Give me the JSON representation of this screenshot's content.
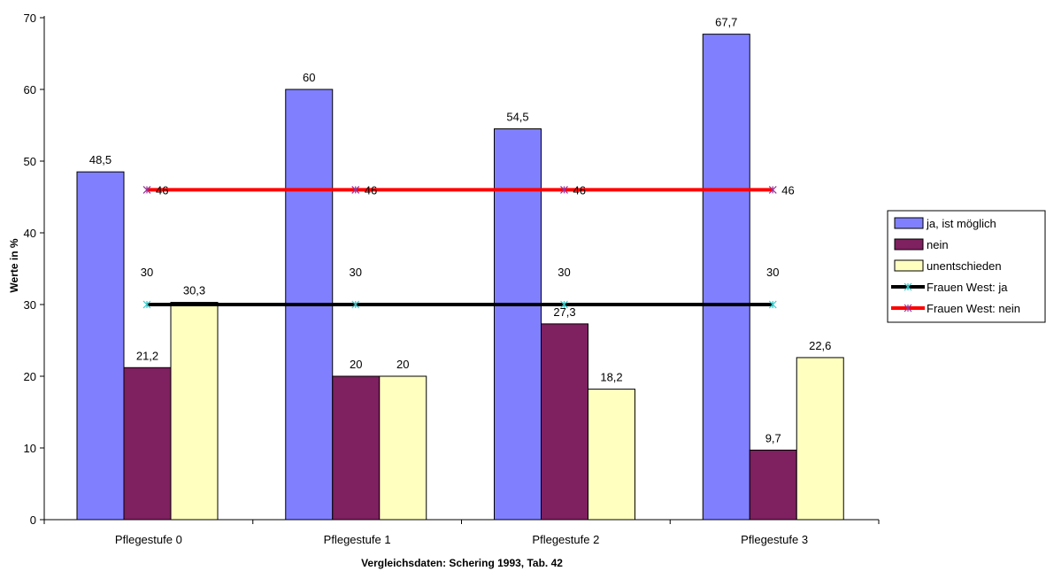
{
  "chart_data": {
    "type": "bar",
    "categories": [
      "Pflegestufe 0",
      "Pflegestufe 1",
      "Pflegestufe 2",
      "Pflegestufe 3"
    ],
    "series": [
      {
        "name": "ja, ist möglich",
        "values": [
          48.5,
          60,
          54.5,
          67.7
        ],
        "labels": [
          "48,5",
          "60",
          "54,5",
          "67,7"
        ],
        "color": "#8080ff",
        "kind": "bar"
      },
      {
        "name": "nein",
        "values": [
          21.2,
          20,
          27.3,
          9.7
        ],
        "labels": [
          "21,2",
          "20",
          "27,3",
          "9,7"
        ],
        "color": "#7f2060",
        "kind": "bar"
      },
      {
        "name": "unentschieden",
        "values": [
          30.3,
          20,
          18.2,
          22.6
        ],
        "labels": [
          "30,3",
          "20",
          "18,2",
          "22,6"
        ],
        "color": "#ffffc0",
        "kind": "bar"
      },
      {
        "name": "Frauen West: ja",
        "values": [
          30,
          30,
          30,
          30
        ],
        "labels": [
          "30",
          "30",
          "30",
          "30"
        ],
        "color": "#000000",
        "marker_color": "#33cccc",
        "kind": "line"
      },
      {
        "name": "Frauen West: nein",
        "values": [
          46,
          46,
          46,
          46
        ],
        "labels": [
          "46",
          "46",
          "46",
          "46"
        ],
        "color": "#ff0000",
        "marker_color": "#993399",
        "kind": "line"
      }
    ],
    "xlabel": "Vergleichsdaten: Schering 1993, Tab. 42",
    "ylabel": "Werte in %",
    "ylim": [
      0,
      70
    ],
    "yticks": [
      0,
      10,
      20,
      30,
      40,
      50,
      60,
      70
    ],
    "grid": false,
    "legend": "right"
  }
}
